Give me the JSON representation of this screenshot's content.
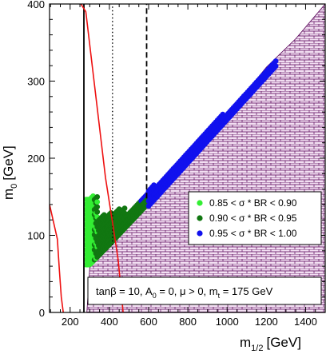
{
  "chart_data": {
    "type": "scatter",
    "title": "",
    "xlabel": "m",
    "xlabel_sub": "1/2",
    "xlabel_unit": "[GeV]",
    "ylabel": "m",
    "ylabel_sub": "0",
    "ylabel_unit": "[GeV]",
    "xlim": [
      95,
      1500
    ],
    "ylim": [
      0,
      400
    ],
    "xticks": [
      200,
      400,
      600,
      800,
      1000,
      1200,
      1400
    ],
    "yticks": [
      0,
      100,
      200,
      300,
      400
    ],
    "grid": false,
    "legend_position": "center-right",
    "colors": {
      "light_green": "#33ee33",
      "dark_green": "#117711",
      "blue": "#1111ee",
      "red": "#ee1111",
      "hatch_fill": "#f2dff2",
      "hatch_line": "#550055"
    },
    "series": [
      {
        "name": "0.85 < σ * BR < 0.90",
        "color": "#33ee33"
      },
      {
        "name": "0.90 < σ * BR < 0.95",
        "color": "#117711"
      },
      {
        "name": "0.95 < σ * BR < 1.00",
        "color": "#1111ee"
      }
    ],
    "regions": {
      "green_band": {
        "x_range": [
          280,
          600
        ],
        "y_bottom": [
          62,
          130
        ],
        "y_top_left": 152
      },
      "blue_band": {
        "x_range": [
          600,
          1250
        ],
        "lower_edge": [
          [
            600,
            138
          ],
          [
            1250,
            320
          ]
        ],
        "upper_edge": [
          [
            600,
            158
          ],
          [
            1250,
            328
          ]
        ]
      },
      "excluded_hatched": {
        "boundary": [
          [
            285,
            0
          ],
          [
            300,
            58
          ],
          [
            400,
            84
          ],
          [
            600,
            138
          ],
          [
            800,
            195
          ],
          [
            1000,
            255
          ],
          [
            1200,
            318
          ],
          [
            1350,
            355
          ],
          [
            1500,
            400
          ]
        ]
      }
    },
    "curves": [
      {
        "style": "solid-black",
        "points": [
          [
            270,
            0
          ],
          [
            270,
            400
          ]
        ]
      },
      {
        "style": "dotted-black",
        "points": [
          [
            416,
            78
          ],
          [
            416,
            400
          ]
        ]
      },
      {
        "style": "dashed-black",
        "points": [
          [
            590,
            148
          ],
          [
            590,
            400
          ]
        ]
      },
      {
        "style": "red",
        "points": [
          [
            255,
            400
          ],
          [
            280,
            390
          ],
          [
            380,
            175
          ],
          [
            420,
            110
          ],
          [
            445,
            68
          ],
          [
            470,
            0
          ]
        ]
      },
      {
        "style": "red",
        "points": [
          [
            95,
            140
          ],
          [
            135,
            95
          ],
          [
            145,
            55
          ],
          [
            155,
            20
          ],
          [
            165,
            0
          ]
        ]
      }
    ],
    "annotation": {
      "parts": [
        "tanβ = 10, A",
        "0",
        " = 0, μ > 0, m",
        "t",
        " = 175 GeV"
      ]
    }
  }
}
